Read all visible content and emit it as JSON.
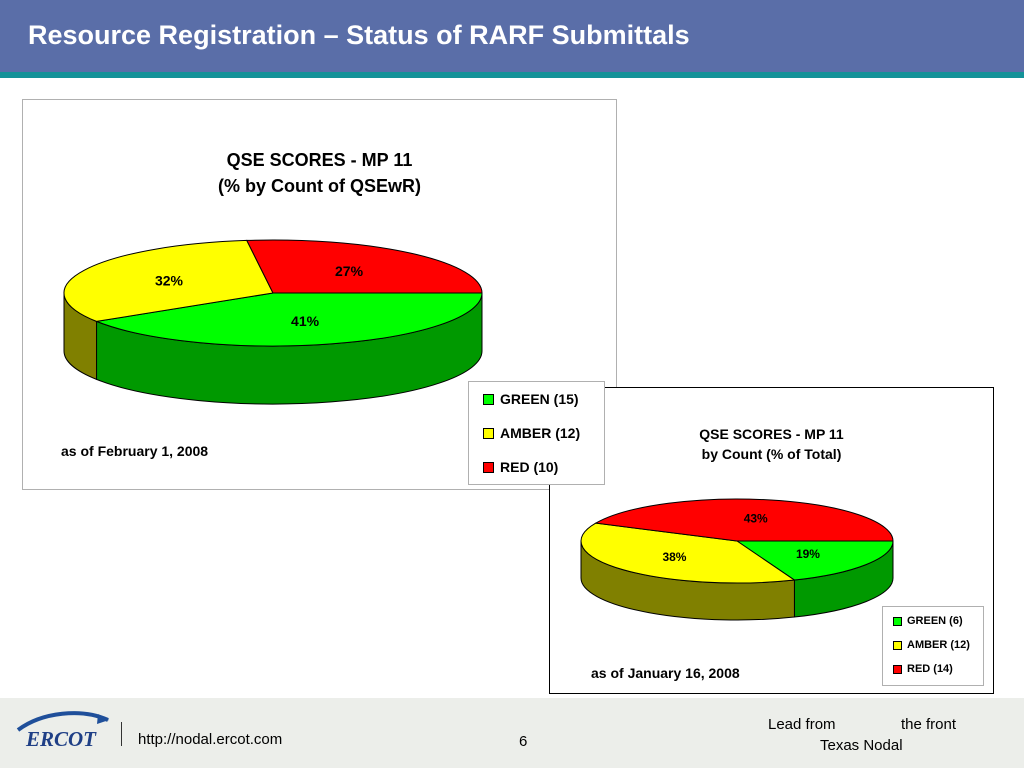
{
  "slide": {
    "title": "Resource Registration – Status of RARF Submittals"
  },
  "chart_data": [
    {
      "type": "pie",
      "title": "QSE SCORES - MP 11",
      "subtitle": "(% by Count of QSEwR)",
      "categories": [
        "GREEN (15)",
        "AMBER (12)",
        "RED (10)"
      ],
      "values": [
        41,
        32,
        27
      ],
      "data_labels": [
        "41%",
        "32%",
        "27%"
      ],
      "colors": [
        "#00ff00",
        "#ffff00",
        "#ff0000"
      ],
      "legend_placement": "bottom-right",
      "annotation": "as of February 1, 2008"
    },
    {
      "type": "pie",
      "title": "QSE SCORES - MP 11",
      "subtitle": "by Count (% of Total)",
      "categories": [
        "GREEN (6)",
        "AMBER (12)",
        "RED (14)"
      ],
      "values": [
        19,
        38,
        43
      ],
      "data_labels": [
        "19%",
        "38%",
        "43%"
      ],
      "colors": [
        "#00ff00",
        "#ffff00",
        "#ff0000"
      ],
      "legend_placement": "bottom-right",
      "annotation": "as of January 16, 2008"
    }
  ],
  "footer": {
    "logo_text": "ERCOT",
    "url": "http://nodal.ercot.com",
    "page_number": "6",
    "tagline_part1": "Lead from",
    "tagline_part2": "the front",
    "tagline_part3": "Texas Nodal"
  }
}
